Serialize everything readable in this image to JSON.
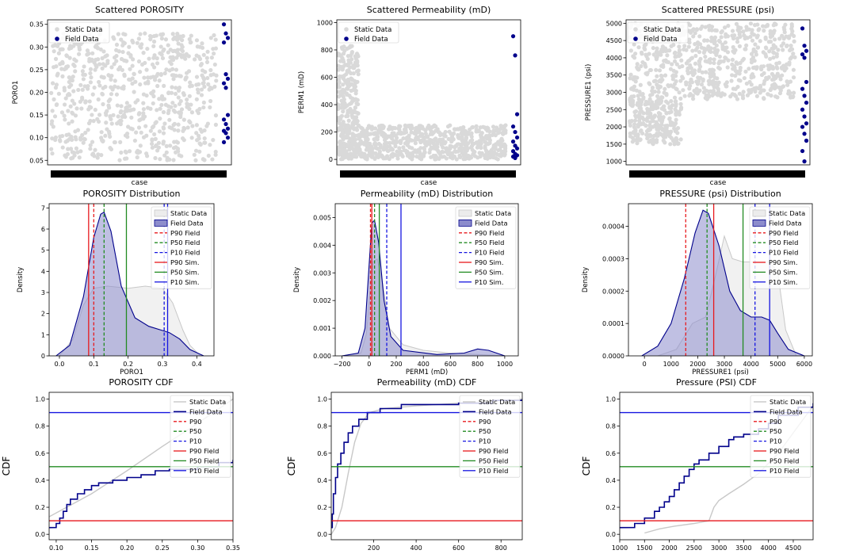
{
  "colors": {
    "static": "#d9d9d9",
    "static_line": "#c8c8c8",
    "field": "#00008b",
    "field_fill": "#8c8ccc",
    "p90": "#e8191d",
    "p50": "#228b22",
    "p10": "#1515e0",
    "axis": "#000000"
  },
  "chart_data": [
    {
      "id": "scatter-porosity",
      "type": "scatter",
      "title": "Scattered POROSITY",
      "xlabel": "case",
      "ylabel": "PORO1",
      "xlim": [
        0,
        100
      ],
      "ylim": [
        0.04,
        0.36
      ],
      "yticks": [
        0.05,
        0.1,
        0.15,
        0.2,
        0.25,
        0.3,
        0.35
      ],
      "ytick_labels": [
        "0.05",
        "0.10",
        "0.15",
        "0.20",
        "0.25",
        "0.30",
        "0.35"
      ],
      "static_range": {
        "x": [
          2,
          92
        ],
        "y": [
          0.05,
          0.33
        ]
      },
      "field_points": {
        "x": 97,
        "y": [
          0.35,
          0.33,
          0.32,
          0.31,
          0.24,
          0.23,
          0.22,
          0.21,
          0.15,
          0.14,
          0.13,
          0.12,
          0.115,
          0.11,
          0.1,
          0.09
        ]
      },
      "legend": [
        "Static Data",
        "Field Data"
      ],
      "legend_position": "top-left"
    },
    {
      "id": "scatter-perm",
      "type": "scatter",
      "title": "Scattered Permeability (mD)",
      "xlabel": "case",
      "ylabel": "PERM1 (mD)",
      "xlim": [
        0,
        100
      ],
      "ylim": [
        -40,
        1020
      ],
      "yticks": [
        0,
        200,
        400,
        600,
        800,
        1000
      ],
      "ytick_labels": [
        "0",
        "200",
        "400",
        "600",
        "800",
        "1000"
      ],
      "static_range": {
        "x": [
          2,
          92
        ],
        "y": [
          0,
          250
        ]
      },
      "static_extra": {
        "x": [
          0.5,
          12
        ],
        "y": [
          0,
          830
        ]
      },
      "field_points": {
        "x": 97,
        "y": [
          900,
          760,
          330,
          240,
          200,
          160,
          130,
          100,
          80,
          60,
          40,
          30,
          20,
          10
        ]
      },
      "legend": [
        "Static Data",
        "Field Data"
      ],
      "legend_position": "top-center"
    },
    {
      "id": "scatter-pressure",
      "type": "scatter",
      "title": "Scattered PRESSURE (psi)",
      "xlabel": "case",
      "ylabel": "PRESSURE1 (psi)",
      "xlim": [
        0,
        100
      ],
      "ylim": [
        900,
        5100
      ],
      "yticks": [
        1000,
        1500,
        2000,
        2500,
        3000,
        3500,
        4000,
        4500,
        5000
      ],
      "ytick_labels": [
        "1000",
        "1500",
        "2000",
        "2500",
        "3000",
        "3500",
        "4000",
        "4500",
        "5000"
      ],
      "static_range": {
        "x": [
          2,
          92
        ],
        "y": [
          2800,
          5000
        ]
      },
      "static_extra": {
        "x": [
          2,
          30
        ],
        "y": [
          1500,
          2800
        ]
      },
      "field_points": {
        "x": 97,
        "y": [
          4850,
          4350,
          4200,
          4100,
          4000,
          3300,
          3100,
          2900,
          2700,
          2500,
          2300,
          2100,
          2000,
          1800,
          1600,
          1300,
          1000
        ]
      },
      "legend": [
        "Static Data",
        "Field Data"
      ],
      "legend_position": "top-left"
    },
    {
      "id": "dist-porosity",
      "type": "area",
      "title": "POROSITY Distribution",
      "xlabel": "PORO1",
      "ylabel": "Density",
      "xlim": [
        -0.03,
        0.45
      ],
      "ylim": [
        0,
        7.2
      ],
      "xticks": [
        0.0,
        0.1,
        0.2,
        0.3,
        0.4
      ],
      "xtick_labels": [
        "0.0",
        "0.1",
        "0.2",
        "0.3",
        "0.4"
      ],
      "yticks": [
        0,
        1,
        2,
        3,
        4,
        5,
        6,
        7
      ],
      "ytick_labels": [
        "0",
        "1",
        "2",
        "3",
        "4",
        "5",
        "6",
        "7"
      ],
      "static_curve": {
        "x": [
          0.0,
          0.04,
          0.07,
          0.1,
          0.14,
          0.2,
          0.25,
          0.3,
          0.33,
          0.36,
          0.38,
          0.41
        ],
        "y": [
          0,
          0.8,
          2.4,
          3.2,
          3.3,
          3.2,
          3.3,
          3.2,
          2.5,
          1.2,
          0.5,
          0
        ]
      },
      "field_curve": {
        "x": [
          -0.01,
          0.03,
          0.07,
          0.1,
          0.12,
          0.13,
          0.15,
          0.18,
          0.22,
          0.26,
          0.3,
          0.32,
          0.35,
          0.38,
          0.42
        ],
        "y": [
          0,
          0.5,
          2.8,
          5.6,
          6.7,
          6.8,
          5.9,
          3.3,
          1.8,
          1.4,
          1.2,
          1.1,
          0.8,
          0.3,
          0
        ]
      },
      "vlines": {
        "p90_field": 0.1,
        "p50_field": 0.13,
        "p10_field": 0.305,
        "p90_sim": 0.085,
        "p50_sim": 0.195,
        "p10_sim": 0.315
      },
      "legend": [
        "Static Data",
        "Field Data",
        "P90 Field",
        "P50 Field",
        "P10 Field",
        "P90 Sim.",
        "P50 Sim.",
        "P10 Sim."
      ],
      "legend_position": "top-right"
    },
    {
      "id": "dist-perm",
      "type": "area",
      "title": "Permeability (mD) Distribution",
      "xlabel": "PERM1 (mD)",
      "ylabel": "Density",
      "xlim": [
        -250,
        1100
      ],
      "ylim": [
        0,
        0.0055
      ],
      "xticks": [
        -200,
        0,
        200,
        400,
        600,
        800,
        1000
      ],
      "xtick_labels": [
        "−200",
        "0",
        "200",
        "400",
        "600",
        "800",
        "1000"
      ],
      "yticks": [
        0,
        0.001,
        0.002,
        0.003,
        0.004,
        0.005
      ],
      "ytick_labels": [
        "0.000",
        "0.001",
        "0.002",
        "0.003",
        "0.004",
        "0.005"
      ],
      "static_curve": {
        "x": [
          -200,
          -60,
          -20,
          10,
          30,
          60,
          100,
          150,
          250,
          400,
          600,
          800,
          1000
        ],
        "y": [
          0,
          0.0001,
          0.0008,
          0.0025,
          0.0034,
          0.0035,
          0.0026,
          0.001,
          0.0004,
          0.0002,
          0.0001,
          5e-05,
          0
        ]
      },
      "field_curve": {
        "x": [
          -200,
          -80,
          -30,
          0,
          20,
          40,
          70,
          110,
          160,
          250,
          500,
          700,
          800,
          880,
          1000
        ],
        "y": [
          0,
          0.0001,
          0.001,
          0.0033,
          0.0048,
          0.0049,
          0.0041,
          0.002,
          0.0007,
          0.0002,
          5e-05,
          0.0001,
          0.00025,
          0.0002,
          0
        ]
      },
      "vlines": {
        "p90_field": 10,
        "p50_field": 40,
        "p10_field": 130,
        "p90_sim": 20,
        "p50_sim": 75,
        "p10_sim": 235
      },
      "legend": [
        "Static Data",
        "Field Data",
        "P90 Field",
        "P50 Field",
        "P10 Field",
        "P90 Sim.",
        "P50 Sim.",
        "P10 Sim."
      ],
      "legend_position": "top-right"
    },
    {
      "id": "dist-pressure",
      "type": "area",
      "title": "PRESSURE (psi) Distribution",
      "xlabel": "PRESSURE1 (psi)",
      "ylabel": "Density",
      "xlim": [
        -600,
        6300
      ],
      "ylim": [
        0,
        0.00047
      ],
      "xticks": [
        0,
        1000,
        2000,
        3000,
        4000,
        5000,
        6000
      ],
      "xtick_labels": [
        "0",
        "1000",
        "2000",
        "3000",
        "4000",
        "5000",
        "6000"
      ],
      "yticks": [
        0,
        0.0001,
        0.0002,
        0.0003,
        0.0004
      ],
      "ytick_labels": [
        "0.0000",
        "0.0001",
        "0.0002",
        "0.0003",
        "0.0004"
      ],
      "static_curve": {
        "x": [
          500,
          1200,
          1800,
          2300,
          2700,
          3000,
          3300,
          3700,
          4200,
          4700,
          5000,
          5300,
          5700
        ],
        "y": [
          0,
          2e-05,
          0.0001,
          0.00012,
          0.00026,
          0.00037,
          0.0003,
          0.00029,
          0.00029,
          0.00029,
          0.00026,
          8e-05,
          0
        ]
      },
      "field_curve": {
        "x": [
          -100,
          500,
          1000,
          1500,
          1900,
          2200,
          2400,
          2800,
          3200,
          3600,
          4000,
          4400,
          4700,
          5000,
          5400,
          6000
        ],
        "y": [
          0,
          3e-05,
          0.0001,
          0.00024,
          0.00038,
          0.00045,
          0.00044,
          0.00034,
          0.0002,
          0.00014,
          0.00012,
          0.00012,
          0.00011,
          7e-05,
          2e-05,
          0
        ]
      },
      "vlines": {
        "p90_field": 1550,
        "p50_field": 2350,
        "p10_field": 4150,
        "p90_sim": 2600,
        "p50_sim": 3700,
        "p10_sim": 4700
      },
      "legend": [
        "Static Data",
        "Field Data",
        "P90 Field",
        "P50 Field",
        "P10 Field",
        "P90 Sim.",
        "P50 Sim.",
        "P10 Sim."
      ],
      "legend_position": "top-right"
    },
    {
      "id": "cdf-porosity",
      "type": "line",
      "title": "POROSITY CDF",
      "xlabel": "",
      "ylabel": "CDF",
      "xlim": [
        0.09,
        0.35
      ],
      "ylim": [
        -0.04,
        1.05
      ],
      "xticks": [
        0.1,
        0.15,
        0.2,
        0.25,
        0.3,
        0.35
      ],
      "xtick_labels": [
        "0.10",
        "0.15",
        "0.20",
        "0.25",
        "0.30",
        "0.35"
      ],
      "yticks": [
        0,
        0.2,
        0.4,
        0.6,
        0.8,
        1.0
      ],
      "ytick_labels": [
        "0.0",
        "0.2",
        "0.4",
        "0.6",
        "0.8",
        "1.0"
      ],
      "static_curve": {
        "x": [
          0.09,
          0.15,
          0.2,
          0.25,
          0.3,
          0.35
        ],
        "y": [
          0.13,
          0.3,
          0.47,
          0.65,
          0.82,
          1.0
        ]
      },
      "field_curve": {
        "x": [
          0.09,
          0.1,
          0.105,
          0.11,
          0.115,
          0.12,
          0.13,
          0.14,
          0.15,
          0.16,
          0.18,
          0.2,
          0.22,
          0.24,
          0.26,
          0.3,
          0.33,
          0.35
        ],
        "y": [
          0.05,
          0.08,
          0.12,
          0.17,
          0.22,
          0.26,
          0.3,
          0.33,
          0.36,
          0.38,
          0.4,
          0.42,
          0.44,
          0.47,
          0.48,
          0.5,
          0.53,
          0.55
        ]
      },
      "hlines": {
        "p90_field": 0.1,
        "p50_field": 0.5,
        "p10_field": 0.9
      },
      "legend": [
        "Static Data",
        "Field Data",
        "P90",
        "P50",
        "P10",
        "P90 Field",
        "P50 Field",
        "P10 Field"
      ],
      "legend_position": "top-right"
    },
    {
      "id": "cdf-perm",
      "type": "line",
      "title": "Permeability (mD) CDF",
      "xlabel": "",
      "ylabel": "CDF",
      "xlim": [
        0,
        900
      ],
      "ylim": [
        -0.04,
        1.05
      ],
      "xticks": [
        200,
        400,
        600,
        800
      ],
      "xtick_labels": [
        "200",
        "400",
        "600",
        "800"
      ],
      "yticks": [
        0,
        0.2,
        0.4,
        0.6,
        0.8,
        1.0
      ],
      "ytick_labels": [
        "0.0",
        "0.2",
        "0.4",
        "0.6",
        "0.8",
        "1.0"
      ],
      "static_curve": {
        "x": [
          0,
          20,
          50,
          80,
          110,
          140,
          180,
          250,
          400,
          600,
          900
        ],
        "y": [
          0,
          0.05,
          0.2,
          0.45,
          0.68,
          0.82,
          0.9,
          0.93,
          0.95,
          0.97,
          1.0
        ]
      },
      "field_curve": {
        "x": [
          0,
          5,
          10,
          20,
          30,
          45,
          60,
          80,
          100,
          130,
          170,
          230,
          330,
          600,
          760,
          900
        ],
        "y": [
          0.05,
          0.15,
          0.3,
          0.42,
          0.52,
          0.6,
          0.68,
          0.75,
          0.8,
          0.85,
          0.9,
          0.93,
          0.96,
          0.97,
          0.99,
          1.0
        ]
      },
      "hlines": {
        "p90_field": 0.1,
        "p50_field": 0.5,
        "p10_field": 0.9
      },
      "legend": [
        "Static Data",
        "Field Data",
        "P90",
        "P50",
        "P10",
        "P90 Field",
        "P50 Field",
        "P10 Field"
      ],
      "legend_position": "top-right"
    },
    {
      "id": "cdf-pressure",
      "type": "line",
      "title": "Pressure (PSI) CDF",
      "xlabel": "",
      "ylabel": "CDF",
      "xlim": [
        1000,
        4900
      ],
      "ylim": [
        -0.04,
        1.05
      ],
      "xticks": [
        1000,
        1500,
        2000,
        2500,
        3000,
        3500,
        4000,
        4500
      ],
      "xtick_labels": [
        "1000",
        "1500",
        "2000",
        "2500",
        "3000",
        "3500",
        "4000",
        "4500"
      ],
      "yticks": [
        0,
        0.2,
        0.4,
        0.6,
        0.8,
        1.0
      ],
      "ytick_labels": [
        "0.0",
        "0.2",
        "0.4",
        "0.6",
        "0.8",
        "1.0"
      ],
      "static_curve": {
        "x": [
          1500,
          1800,
          2100,
          2500,
          2800,
          2900,
          3000,
          3200,
          3500,
          3800,
          4200,
          4600,
          4900
        ],
        "y": [
          0.01,
          0.04,
          0.06,
          0.08,
          0.1,
          0.2,
          0.25,
          0.3,
          0.37,
          0.45,
          0.6,
          0.8,
          0.95
        ]
      },
      "field_curve": {
        "x": [
          1000,
          1300,
          1500,
          1700,
          1800,
          1900,
          2000,
          2100,
          2200,
          2300,
          2400,
          2500,
          2600,
          2800,
          3000,
          3200,
          3300,
          3500,
          3800,
          4000,
          4200,
          4600,
          4900
        ],
        "y": [
          0.05,
          0.08,
          0.12,
          0.17,
          0.2,
          0.24,
          0.28,
          0.33,
          0.38,
          0.43,
          0.48,
          0.52,
          0.55,
          0.6,
          0.65,
          0.7,
          0.72,
          0.74,
          0.78,
          0.82,
          0.88,
          0.94,
          0.97
        ]
      },
      "hlines": {
        "p90_field": 0.1,
        "p50_field": 0.5,
        "p10_field": 0.9
      },
      "legend": [
        "Static Data",
        "Field Data",
        "P90",
        "P50",
        "P10",
        "P90 Field",
        "P50 Field",
        "P10 Field"
      ],
      "legend_position": "top-right"
    }
  ]
}
